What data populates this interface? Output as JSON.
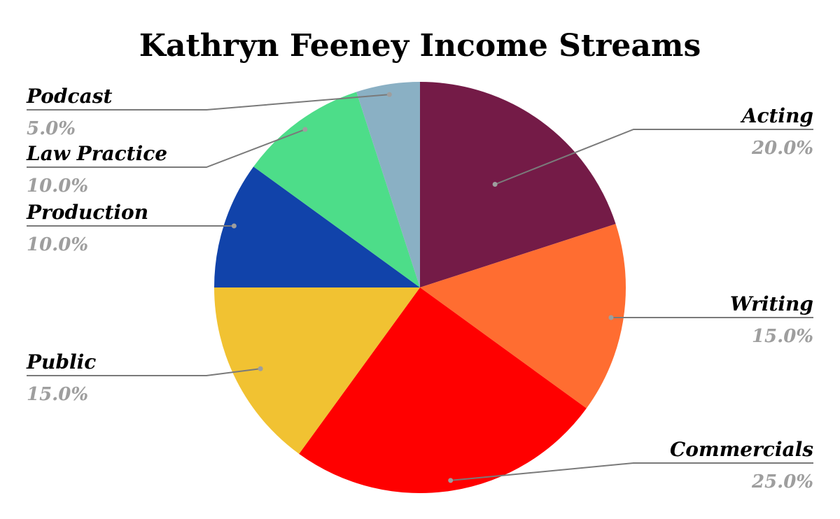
{
  "chart_data": {
    "type": "pie",
    "title": "Kathryn Feeney Income Streams",
    "slices": [
      {
        "label": "Acting",
        "value": 20.0,
        "display": "20.0%",
        "color": "#741b47"
      },
      {
        "label": "Writing",
        "value": 15.0,
        "display": "15.0%",
        "color": "#ff6d31"
      },
      {
        "label": "Commercials",
        "value": 25.0,
        "display": "25.0%",
        "color": "#ff0000"
      },
      {
        "label": "Public",
        "value": 15.0,
        "display": "15.0%",
        "color": "#f1c232"
      },
      {
        "label": "Production",
        "value": 10.0,
        "display": "10.0%",
        "color": "#1143aa"
      },
      {
        "label": "Law Practice",
        "value": 10.0,
        "display": "10.0%",
        "color": "#4ddd89"
      },
      {
        "label": "Podcast",
        "value": 5.0,
        "display": "5.0%",
        "color": "#8ab0c4"
      }
    ],
    "start_angle": "12 o'clock",
    "direction": "clockwise",
    "legend": "none"
  }
}
